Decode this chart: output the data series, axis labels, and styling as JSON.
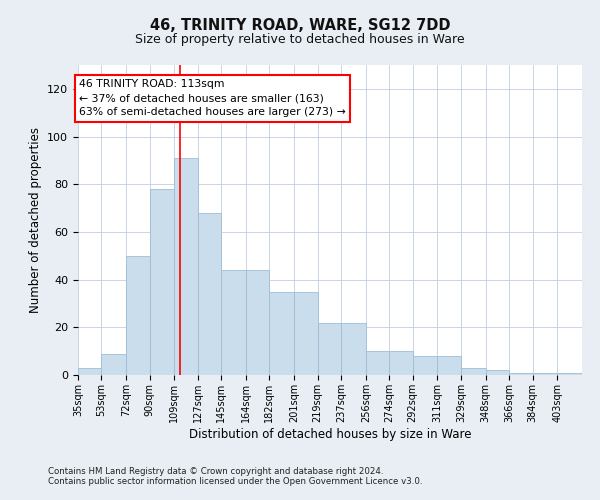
{
  "title": "46, TRINITY ROAD, WARE, SG12 7DD",
  "subtitle": "Size of property relative to detached houses in Ware",
  "xlabel": "Distribution of detached houses by size in Ware",
  "ylabel": "Number of detached properties",
  "footnote1": "Contains HM Land Registry data © Crown copyright and database right 2024.",
  "footnote2": "Contains public sector information licensed under the Open Government Licence v3.0.",
  "annotation_line1": "46 TRINITY ROAD: 113sqm",
  "annotation_line2": "← 37% of detached houses are smaller (163)",
  "annotation_line3": "63% of semi-detached houses are larger (273) →",
  "bar_color": "#c9dded",
  "bar_edge_color": "#a0bdd4",
  "red_line_x": 113,
  "bins": [
    35,
    53,
    72,
    90,
    109,
    127,
    145,
    164,
    182,
    201,
    219,
    237,
    256,
    274,
    292,
    311,
    329,
    348,
    366,
    384,
    403
  ],
  "bin_labels": [
    "35sqm",
    "53sqm",
    "72sqm",
    "90sqm",
    "109sqm",
    "127sqm",
    "145sqm",
    "164sqm",
    "182sqm",
    "201sqm",
    "219sqm",
    "237sqm",
    "256sqm",
    "274sqm",
    "292sqm",
    "311sqm",
    "329sqm",
    "348sqm",
    "366sqm",
    "384sqm",
    "403sqm"
  ],
  "values": [
    3,
    9,
    50,
    78,
    91,
    68,
    44,
    44,
    35,
    35,
    22,
    22,
    10,
    10,
    8,
    8,
    3,
    2,
    1,
    1,
    1
  ],
  "ylim": [
    0,
    130
  ],
  "yticks": [
    0,
    20,
    40,
    60,
    80,
    100,
    120
  ],
  "background_color": "#e8eef4",
  "plot_bg_color": "#ffffff",
  "grid_color": "#c0cfe0",
  "title_fontsize": 10.5,
  "subtitle_fontsize": 9.5
}
